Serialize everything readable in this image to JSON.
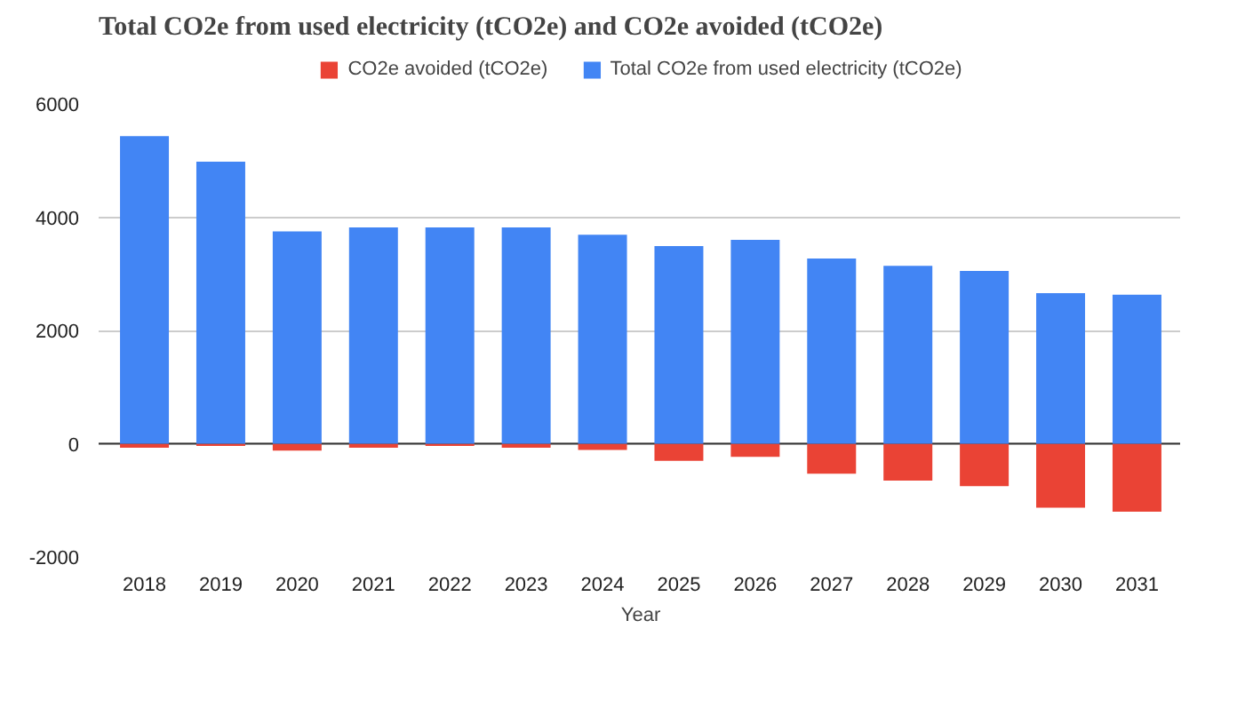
{
  "chart_data": {
    "type": "bar",
    "title": "Total CO2e from used electricity (tCO2e) and CO2e avoided (tCO2e)",
    "xlabel": "Year",
    "categories": [
      "2018",
      "2019",
      "2020",
      "2021",
      "2022",
      "2023",
      "2024",
      "2025",
      "2026",
      "2027",
      "2028",
      "2029",
      "2030",
      "2031"
    ],
    "series": [
      {
        "name": "CO2e avoided (tCO2e)",
        "color": "#ea4335",
        "values": [
          -70,
          -40,
          -120,
          -70,
          -40,
          -70,
          -110,
          -300,
          -230,
          -530,
          -650,
          -750,
          -1130,
          -1200
        ]
      },
      {
        "name": "Total CO2e from used electricity (tCO2e)",
        "color": "#4285f4",
        "values": [
          5430,
          4980,
          3750,
          3820,
          3820,
          3820,
          3690,
          3490,
          3600,
          3270,
          3140,
          3050,
          2660,
          2630
        ]
      }
    ],
    "stacked": true,
    "ylim": [
      -2000,
      6000
    ],
    "yticks": [
      -2000,
      0,
      2000,
      4000,
      6000
    ],
    "grid": "y",
    "legend": "top"
  }
}
